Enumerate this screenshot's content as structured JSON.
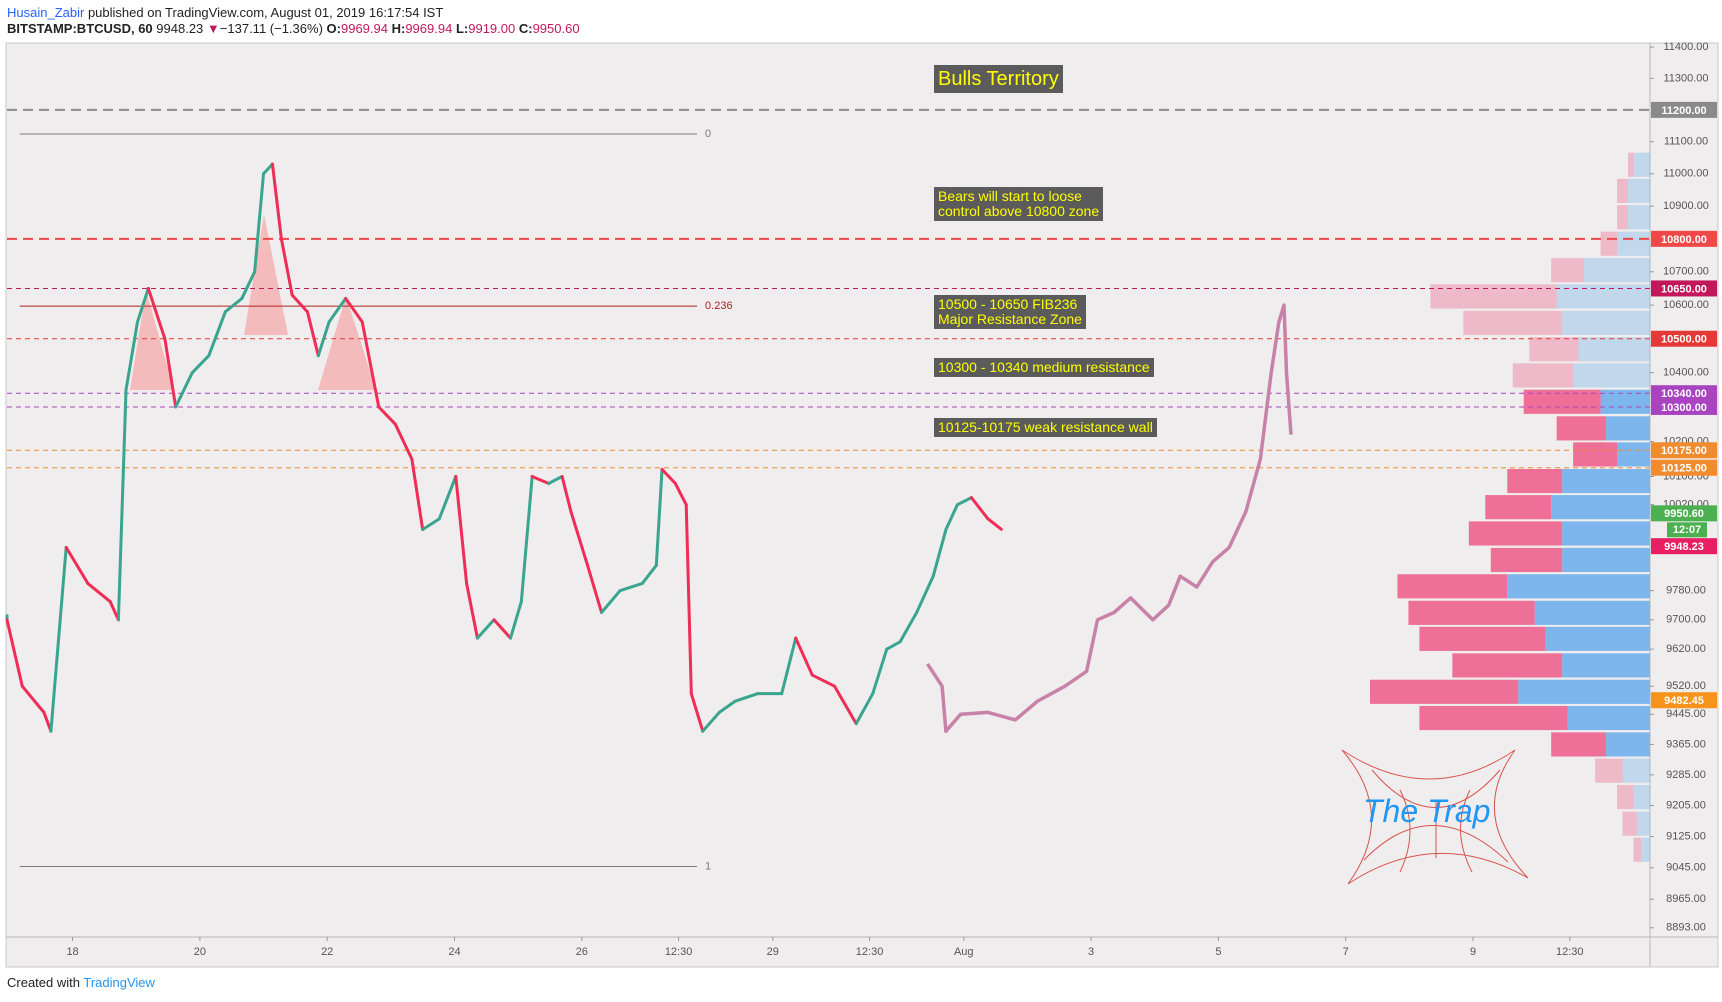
{
  "header": {
    "author": "Husain_Zabir",
    "published": "published on TradingView.com, August 01, 2019 16:17:54 IST",
    "symbol": "BITSTAMP:BTCUSD, 60",
    "last": "9948.23",
    "arrow": "▼",
    "change": "−137.11 (−1.36%)",
    "o_label": "O:",
    "o": "9969.94",
    "h_label": "H:",
    "h": "9969.94",
    "l_label": "L:",
    "l": "9919.00",
    "c_label": "C:",
    "c": "9950.60"
  },
  "footer": {
    "created": "Created with",
    "brand": "TradingView"
  },
  "annotations": [
    [
      "Bulls Territory"
    ],
    [
      "Bears will start to loose",
      "control above 10800 zone"
    ],
    [
      "10500 - 10650 FIB236",
      "Major Resistance Zone"
    ],
    [
      "10300 - 10340 medium resistance"
    ],
    [
      "10125-10175 weak resistance wall"
    ]
  ],
  "logo": "The Trap",
  "chart_data": {
    "type": "line",
    "log": true,
    "xlim": [
      16.97,
      42.78
    ],
    "ylim": [
      8870,
      11410
    ],
    "xticks": [
      18,
      20,
      22,
      24,
      26,
      {
        "value": 27.52,
        "label": "12:30"
      },
      29,
      {
        "value": 30.52,
        "label": "12:30"
      },
      {
        "value": 32,
        "label": "Aug"
      },
      {
        "value": 34,
        "label": "3"
      },
      {
        "value": 36,
        "label": "5"
      },
      {
        "value": 38,
        "label": "7"
      },
      {
        "value": 40,
        "label": "9"
      },
      {
        "value": 41.52,
        "label": "12:30"
      }
    ],
    "yticks": [
      {
        "value": 11400,
        "label": "11400.00"
      },
      {
        "value": 11300,
        "label": "11300.00"
      },
      {
        "value": 11100,
        "label": "11100.00"
      },
      {
        "value": 11000,
        "label": "11000.00"
      },
      {
        "value": 10900,
        "label": "10900.00"
      },
      {
        "value": 10700,
        "label": "10700.00"
      },
      {
        "value": 10600,
        "label": "10600.00"
      },
      {
        "value": 10400,
        "label": "10400.00"
      },
      {
        "value": 10200,
        "label": "10200.00"
      },
      {
        "value": 10100,
        "label": "10100.00"
      },
      {
        "value": 10020,
        "label": "10020.00"
      },
      {
        "value": 9780,
        "label": "9780.00"
      },
      {
        "value": 9700,
        "label": "9700.00"
      },
      {
        "value": 9620,
        "label": "9620.00"
      },
      {
        "value": 9520,
        "label": "9520.00"
      },
      {
        "value": 9445,
        "label": "9445.00"
      },
      {
        "value": 9365,
        "label": "9365.00"
      },
      {
        "value": 9285,
        "label": "9285.00"
      },
      {
        "value": 9205,
        "label": "9205.00"
      },
      {
        "value": 9125,
        "label": "9125.00"
      },
      {
        "value": 9045,
        "label": "9045.00"
      },
      {
        "value": 8965,
        "label": "8965.00"
      },
      {
        "value": 8893,
        "label": "8893.00"
      }
    ],
    "price": {
      "up_color": "#3aa58f",
      "down_color": "#ef2d56",
      "x": [
        16.97,
        17.21,
        17.55,
        17.66,
        17.9,
        18.24,
        18.59,
        18.72,
        18.84,
        19.02,
        19.19,
        19.45,
        19.62,
        19.88,
        20.14,
        20.4,
        20.66,
        20.86,
        21.0,
        21.14,
        21.28,
        21.45,
        21.69,
        21.86,
        22.03,
        22.29,
        22.55,
        22.81,
        23.07,
        23.33,
        23.5,
        23.76,
        24.02,
        24.19,
        24.36,
        24.62,
        24.88,
        25.05,
        25.22,
        25.48,
        25.69,
        25.83,
        26.09,
        26.31,
        26.6,
        26.95,
        27.17,
        27.26,
        27.47,
        27.64,
        27.72,
        27.9,
        28.16,
        28.41,
        28.76,
        29.14,
        29.36,
        29.62,
        29.97,
        30.31,
        30.57,
        30.79,
        31.0,
        31.26,
        31.52,
        31.72,
        31.9,
        32.12,
        32.38,
        32.59
      ],
      "values": [
        9700,
        9520,
        9450,
        9400,
        9900,
        9800,
        9750,
        9700,
        10350,
        10550,
        10650,
        10500,
        10300,
        10400,
        10450,
        10580,
        10620,
        10700,
        11000,
        11030,
        10800,
        10630,
        10580,
        10450,
        10550,
        10620,
        10550,
        10300,
        10250,
        10150,
        9950,
        9980,
        10100,
        9800,
        9650,
        9700,
        9650,
        9750,
        10100,
        10080,
        10100,
        10000,
        9850,
        9720,
        9780,
        9800,
        9850,
        10120,
        10080,
        10020,
        9500,
        9400,
        9450,
        9480,
        9500,
        9500,
        9650,
        9550,
        9520,
        9420,
        9500,
        9620,
        9640,
        9720,
        9820,
        9950,
        10020,
        10040,
        9980,
        9950.6
      ]
    },
    "projection": {
      "color": "#c882a8",
      "x": [
        31.43,
        31.66,
        31.72,
        31.95,
        32.38,
        32.81,
        33.16,
        33.59,
        33.93,
        34.1,
        34.36,
        34.62,
        34.97,
        35.22,
        35.4,
        35.66,
        35.91,
        36.17,
        36.43,
        36.66,
        36.83,
        36.95,
        37.03,
        37.07,
        37.14
      ],
      "values": [
        9580,
        9520,
        9400,
        9445,
        9450,
        9430,
        9480,
        9520,
        9560,
        9700,
        9720,
        9760,
        9700,
        9740,
        9820,
        9790,
        9860,
        9900,
        10000,
        10150,
        10400,
        10550,
        10600,
        10400,
        10220
      ]
    },
    "volume_profile": {
      "up_color": "#7db6ec",
      "down_color": "#ee6f97",
      "value_area": [
        9365,
        10340
      ],
      "prices": [
        11028,
        10947,
        10866,
        10785,
        10705,
        10626,
        10547,
        10469,
        10392,
        10315,
        10238,
        10163,
        10087,
        10013,
        9939,
        9865,
        9792,
        9719,
        9648,
        9576,
        9505,
        9435,
        9365,
        9296,
        9227,
        9158,
        9091
      ],
      "up": [
        15,
        20,
        20,
        30,
        60,
        85,
        80,
        65,
        70,
        45,
        40,
        30,
        80,
        90,
        80,
        80,
        130,
        105,
        95,
        80,
        120,
        75,
        40,
        25,
        15,
        12,
        8
      ],
      "down": [
        5,
        10,
        10,
        15,
        30,
        115,
        90,
        45,
        55,
        70,
        45,
        40,
        50,
        60,
        85,
        65,
        100,
        115,
        115,
        100,
        135,
        135,
        50,
        25,
        15,
        13,
        7
      ]
    },
    "levels": [
      {
        "value": 11200,
        "label": "11200.00",
        "color": "#8a8a8a",
        "dash": "10 6",
        "width": 2
      },
      {
        "value": 10800,
        "label": "10800.00",
        "color": "#f04848",
        "dash": "10 6",
        "width": 2
      },
      {
        "value": 10650,
        "label": "10650.00",
        "color": "#c2185b",
        "dash": "5 4",
        "width": 1
      },
      {
        "value": 10500,
        "label": "10500.00",
        "color": "#e53935",
        "dash": "5 4",
        "width": 1
      },
      {
        "value": 10340,
        "label": "10340.00",
        "color": "#a944c0",
        "dash": "5 4",
        "width": 1
      },
      {
        "value": 10300,
        "label": "10300.00",
        "color": "#a944c0",
        "dash": "5 4",
        "width": 1
      },
      {
        "value": 10175,
        "label": "10175.00",
        "color": "#f08c2e",
        "dash": "5 4",
        "width": 1
      },
      {
        "value": 10125,
        "label": "10125.00",
        "color": "#f08c2e",
        "dash": "5 4",
        "width": 1
      }
    ],
    "price_labels": [
      {
        "value": 9950.6,
        "label": "9950.60",
        "color": "#4caf50",
        "countdown": "12:07"
      },
      {
        "value": 9948.23,
        "label": "9948.23",
        "color": "#e91e63"
      },
      {
        "value": 9482.45,
        "label": "9482.45",
        "color": "#f7931a"
      }
    ],
    "fib": {
      "x": [
        17.17,
        27.81
      ],
      "levels": [
        {
          "value": 11124,
          "label": "0",
          "color": "#787b86"
        },
        {
          "value": 10597,
          "label": "0.236",
          "color": "#b22222"
        },
        {
          "value": 9048,
          "label": "1",
          "color": "#787b86"
        }
      ]
    }
  }
}
